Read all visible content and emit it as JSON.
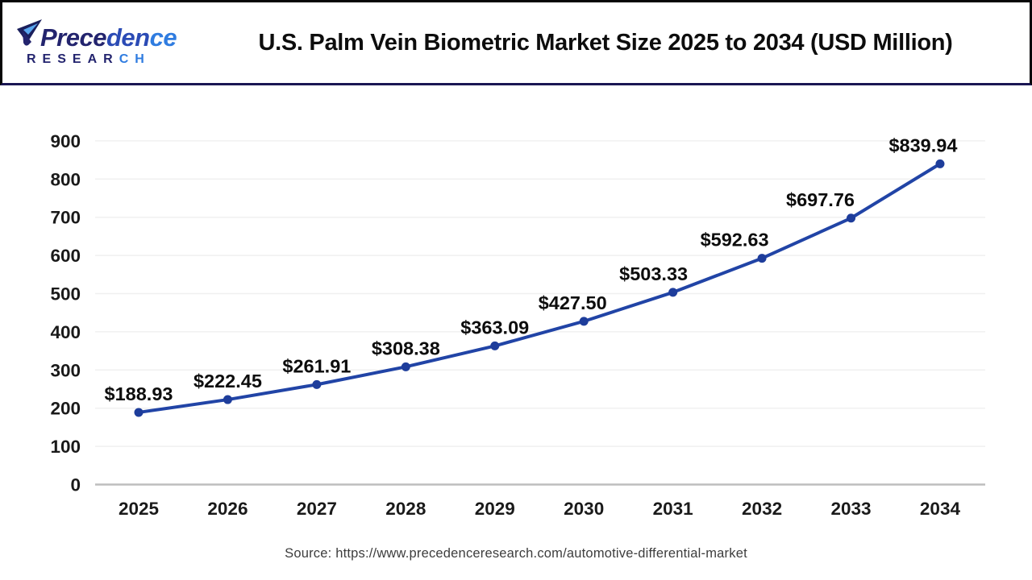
{
  "header": {
    "logo": {
      "mark_icon": "precedence-logomark",
      "brand_part1": "Prece",
      "brand_part2": "den",
      "brand_part3": "ce",
      "subtitle_part1": "RESEAR",
      "subtitle_part2": "CH"
    },
    "title": "U.S. Palm Vein Biometric Market Size 2025 to 2034 (USD Million)"
  },
  "chart_data": {
    "type": "line",
    "title": "U.S. Palm Vein Biometric Market Size 2025 to 2034 (USD Million)",
    "categories": [
      "2025",
      "2026",
      "2027",
      "2028",
      "2029",
      "2030",
      "2031",
      "2032",
      "2033",
      "2034"
    ],
    "values": [
      188.93,
      222.45,
      261.91,
      308.38,
      363.09,
      427.5,
      503.33,
      592.63,
      697.76,
      839.94
    ],
    "point_labels": [
      "$188.93",
      "$222.45",
      "$261.91",
      "$308.38",
      "$363.09",
      "$427.50",
      "$503.33",
      "$592.63",
      "$697.76",
      "$839.94"
    ],
    "xlabel": "",
    "ylabel": "",
    "ylim": [
      0,
      900
    ],
    "yticks": [
      0,
      100,
      200,
      300,
      400,
      500,
      600,
      700,
      800,
      900
    ],
    "grid": "faint horizontal gridlines at each 100, light gray baseline axis",
    "legend": "none",
    "line_color": "#2144a6",
    "marker_color": "#1e3d9b",
    "label_color": "#0d0d0d",
    "tick_color": "#1a1a1a",
    "axis_color": "#bdbdbd",
    "grid_color": "#f0f0f0"
  },
  "footer": {
    "source": "Source: https://www.precedenceresearch.com/automotive-differential-market"
  }
}
